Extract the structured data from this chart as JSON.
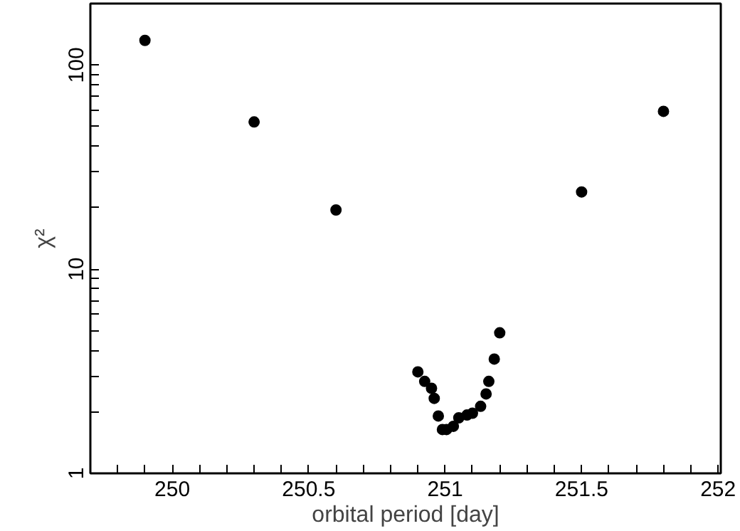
{
  "chart_data": {
    "type": "scatter",
    "xlabel": "orbital period [day]",
    "ylabel": "χ²",
    "log": "y",
    "grid": false,
    "marker": "circle",
    "x": [
      249.9,
      250.3,
      250.6,
      250.9,
      250.925,
      250.95,
      250.96,
      250.975,
      250.99,
      251.005,
      251.03,
      251.05,
      251.08,
      251.1,
      251.13,
      251.15,
      251.16,
      251.18,
      251.2,
      251.5,
      251.8
    ],
    "series": [
      {
        "color": "#000000",
        "values": [
          132,
          52.6,
          19.5,
          3.14,
          2.82,
          2.61,
          2.33,
          1.91,
          1.64,
          1.64,
          1.7,
          1.87,
          1.93,
          1.97,
          2.13,
          2.45,
          2.82,
          3.63,
          4.88,
          23.9,
          59.3
        ]
      }
    ],
    "xlim": [
      249.7,
      252.01
    ],
    "ylim": [
      1,
      200
    ],
    "xticks": [
      {
        "value": 249.8,
        "label": null
      },
      {
        "value": 249.9,
        "label": null
      },
      250,
      {
        "value": 250.1,
        "label": null
      },
      {
        "value": 250.2,
        "label": null
      },
      {
        "value": 250.3,
        "label": null
      },
      {
        "value": 250.4,
        "label": null
      },
      250.5,
      {
        "value": 250.6,
        "label": null
      },
      {
        "value": 250.7,
        "label": null
      },
      {
        "value": 250.8,
        "label": null
      },
      {
        "value": 250.9,
        "label": null
      },
      251,
      {
        "value": 251.1,
        "label": null
      },
      {
        "value": 251.2,
        "label": null
      },
      {
        "value": 251.3,
        "label": null
      },
      {
        "value": 251.4,
        "label": null
      },
      251.5,
      {
        "value": 251.6,
        "label": null
      },
      {
        "value": 251.7,
        "label": null
      },
      {
        "value": 251.8,
        "label": null
      },
      {
        "value": 251.9,
        "label": null
      },
      252
    ],
    "yticks": [
      1,
      {
        "value": 2,
        "label": null
      },
      {
        "value": 3,
        "label": null
      },
      {
        "value": 4,
        "label": null
      },
      {
        "value": 5,
        "label": null
      },
      {
        "value": 6,
        "label": null
      },
      {
        "value": 7,
        "label": null
      },
      {
        "value": 8,
        "label": null
      },
      {
        "value": 9,
        "label": null
      },
      10,
      {
        "value": 20,
        "label": null
      },
      {
        "value": 30,
        "label": null
      },
      {
        "value": 40,
        "label": null
      },
      {
        "value": 50,
        "label": null
      },
      {
        "value": 60,
        "label": null
      },
      {
        "value": 70,
        "label": null
      },
      {
        "value": 80,
        "label": null
      },
      {
        "value": 90,
        "label": null
      },
      100,
      {
        "value": 200,
        "label": null
      }
    ]
  }
}
